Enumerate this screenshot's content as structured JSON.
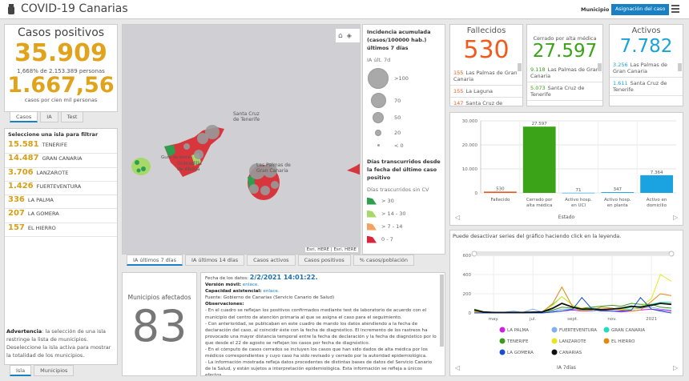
{
  "header": {
    "title": "COVID-19 Canarias",
    "label_municipio": "Municipio",
    "button_asignacion": "Asignación del caso",
    "menu_icon": "hamburger-icon"
  },
  "casos": {
    "title": "Casos positivos",
    "total": "35.909",
    "pct_line": "1,668% de 2.153.389 personas",
    "rate": "1.667,56",
    "rate_label": "casos por cien mil personas",
    "color": "#e0a31c",
    "tabs": [
      "Casos",
      "IA",
      "Test"
    ]
  },
  "islas": {
    "title": "Seleccione una isla para filtrar",
    "items": [
      {
        "num": "15.581",
        "name": "TENERIFE"
      },
      {
        "num": "14.487",
        "name": "GRAN CANARIA"
      },
      {
        "num": "3.706",
        "name": "LANZAROTE"
      },
      {
        "num": "1.426",
        "name": "FUERTEVENTURA"
      },
      {
        "num": "336",
        "name": "LA PALMA"
      },
      {
        "num": "207",
        "name": "LA GOMERA"
      },
      {
        "num": "157",
        "name": "EL HIERRO"
      }
    ],
    "warning_bold": "Advertencia",
    "warning_text": ": la selección de una isla restringe la lista de municipios. Deseleccione la isla activa para mostrar la totalidad de los municipios.",
    "tabs": [
      "Isla",
      "Municipios"
    ]
  },
  "map": {
    "labels": [
      "Santa Cruz de Tenerife",
      "Guía de Isora",
      "Granadilla de Abona",
      "Las Palmas de Gran Canaria"
    ],
    "attribution": "Esri, HERE | Esri, HERE",
    "tabs": [
      "IA últimos 7 días",
      "IA últimos 14 días",
      "Casos activos",
      "Casos positivos",
      "% casos/población"
    ]
  },
  "legend": {
    "title1": "Incidencia acumulada (casos/100000 hab.) últimos 7 días",
    "sub1": "IA últ. 7d",
    "sizes": [
      ">100",
      "70",
      "50",
      "20",
      "< 0"
    ],
    "title2": "Días transcurridos desde la fecha del último caso positivo",
    "sub2": "Días trascurridos sin CV",
    "classes": [
      {
        "label": "> 30",
        "color": "#2e9e4f"
      },
      {
        "label": "> 14 - 30",
        "color": "#a6d96a"
      },
      {
        "label": "> 7 - 14",
        "color": "#f4a261"
      },
      {
        "label": "0 - 7",
        "color": "#d7263d"
      }
    ]
  },
  "municipios": {
    "title": "Municipios afectados",
    "value": "83"
  },
  "info": {
    "fecha_label": "Fecha de los datos:",
    "fecha": "2/2/2021 14:01:22.",
    "movil_label": "Versión móvil:",
    "movil_link": "enlace.",
    "capacidad_label": "Capacidad asistencial:",
    "capacidad_link": "enlace.",
    "fuente": "Fuente: Gobierno de Canarias (Servicio Canario de Salud)",
    "obs_label": "Observaciones:",
    "paragraphs": [
      "- En el cuadro se reflejan los positivos confirmados mediante test de laboratorio de acuerdo con el municipio del centro de atención primaria al que se asigna el caso para el seguimiento.",
      "- Con anterioridad, se publicaban en este cuadro de mando los datos atendiendo a la fecha de declaración del caso, al coincidir éste con la fecha de diagnóstico. El incremento de los rastreos ha provocado una mayor distancia temporal entre la fecha de declaración y la fecha de diagnóstico por lo que desde el 22 de agosto se reflejan los casos por fecha de diagnóstico.",
      "- En el cómputo de casos cerrados se incluyen los casos que han sido dados de alta médica por los médicos correspondientes y cuyo caso ha sido revisado y cerrado por la autoridad epidemiológica.",
      "- La información mostrada refleja datos procedentes de distintas bases de datos del Servicio Canario de la Salud, y están sujetos a interpretación epidemiológica. Esta información se refleja a únicos efectos"
    ]
  },
  "cards": [
    {
      "title": "Fallecidos",
      "value": "530",
      "color": "#f05a1a",
      "rows": [
        {
          "n": "155",
          "t": "Las Palmas de Gran Canaria"
        },
        {
          "n": "155",
          "t": "La Laguna"
        },
        {
          "n": "147",
          "t": "Santa Cruz de"
        }
      ]
    },
    {
      "title": "Cerrado por alta médica",
      "value": "27.597",
      "color": "#3aa317",
      "rows": [
        {
          "n": "9.118",
          "t": "Las Palmas de Gran Canaria"
        },
        {
          "n": "5.073",
          "t": "Santa Cruz de Tenerife"
        }
      ]
    },
    {
      "title": "Activos",
      "value": "7.782",
      "color": "#1aa3d9",
      "rows": [
        {
          "n": "3.256",
          "t": "Las Palmas de Gran Canaria"
        },
        {
          "n": "1.611",
          "t": "Santa Cruz de Tenerife"
        }
      ]
    }
  ],
  "chart_data": [
    {
      "type": "bar",
      "categories": [
        "Fallecido",
        "Cerrado por alta médica",
        "Activo hosp. en UCI",
        "Activo hosp. en planta",
        "Activo en domicilio"
      ],
      "values": [
        530,
        27597,
        71,
        347,
        7364
      ],
      "value_labels": [
        "530",
        "27.597",
        "71",
        "347",
        "7.364"
      ],
      "colors": [
        "#e4571b",
        "#3aa317",
        "#4fb3e8",
        "#29a8e0",
        "#1aa3e0"
      ],
      "xlabel": "Estado",
      "ylabel": "",
      "ylim": [
        0,
        30000
      ],
      "yticks": [
        "0",
        "10.000",
        "20.000",
        "30.000"
      ],
      "grid": true
    },
    {
      "type": "line",
      "note": "Puede desactivar series del gráfico haciendo click en la leyenda.",
      "xlabel": "IA 7días",
      "ylim": [
        0,
        600
      ],
      "yticks": [
        "0",
        "200",
        "400",
        "600"
      ],
      "xticks": [
        "may.",
        "jul.",
        "sept.",
        "nov.",
        "2021"
      ],
      "x": [
        "2020-04-01",
        "2020-04-15",
        "2020-05-01",
        "2020-05-15",
        "2020-06-01",
        "2020-06-15",
        "2020-07-01",
        "2020-07-15",
        "2020-08-01",
        "2020-08-15",
        "2020-09-01",
        "2020-09-15",
        "2020-10-01",
        "2020-10-15",
        "2020-11-01",
        "2020-11-15",
        "2020-12-01",
        "2020-12-15",
        "2021-01-01",
        "2021-01-15",
        "2021-02-01"
      ],
      "series": [
        {
          "name": "LA PALMA",
          "color": "#cc22dd",
          "values": [
            0,
            0,
            0,
            0,
            0,
            0,
            0,
            0,
            10,
            20,
            30,
            20,
            20,
            30,
            20,
            10,
            20,
            30,
            40,
            30,
            20
          ]
        },
        {
          "name": "FUERTEVENTURA",
          "color": "#7fb0f0",
          "values": [
            10,
            5,
            5,
            5,
            20,
            5,
            40,
            10,
            20,
            40,
            40,
            30,
            20,
            30,
            50,
            30,
            40,
            50,
            60,
            40,
            30
          ]
        },
        {
          "name": "GRAN CANARIA",
          "color": "#22dcc0",
          "values": [
            30,
            10,
            5,
            5,
            3,
            3,
            5,
            10,
            90,
            170,
            80,
            40,
            50,
            40,
            40,
            40,
            60,
            70,
            90,
            110,
            110
          ]
        },
        {
          "name": "TENERIFE",
          "color": "#3a9a1a",
          "values": [
            40,
            15,
            5,
            3,
            3,
            3,
            5,
            8,
            30,
            60,
            50,
            50,
            60,
            70,
            80,
            70,
            100,
            90,
            90,
            60,
            50
          ]
        },
        {
          "name": "LANZAROTE",
          "color": "#e6e61a",
          "values": [
            20,
            5,
            2,
            2,
            2,
            2,
            5,
            10,
            80,
            170,
            80,
            50,
            40,
            40,
            40,
            40,
            40,
            60,
            150,
            400,
            330
          ]
        },
        {
          "name": "EL HIERRO",
          "color": "#e08a10",
          "values": [
            10,
            0,
            0,
            0,
            0,
            0,
            0,
            5,
            100,
            270,
            60,
            20,
            30,
            60,
            50,
            30,
            20,
            30,
            120,
            200,
            180
          ]
        },
        {
          "name": "LA GOMERA",
          "color": "#1550d0",
          "values": [
            0,
            0,
            0,
            0,
            0,
            0,
            0,
            0,
            10,
            20,
            40,
            160,
            40,
            20,
            20,
            20,
            30,
            160,
            40,
            20,
            0
          ]
        },
        {
          "name": "CANARIAS",
          "color": "#111111",
          "values": [
            30,
            10,
            5,
            5,
            5,
            5,
            8,
            10,
            50,
            100,
            60,
            40,
            40,
            35,
            40,
            50,
            70,
            60,
            80,
            100,
            90
          ]
        }
      ]
    }
  ]
}
